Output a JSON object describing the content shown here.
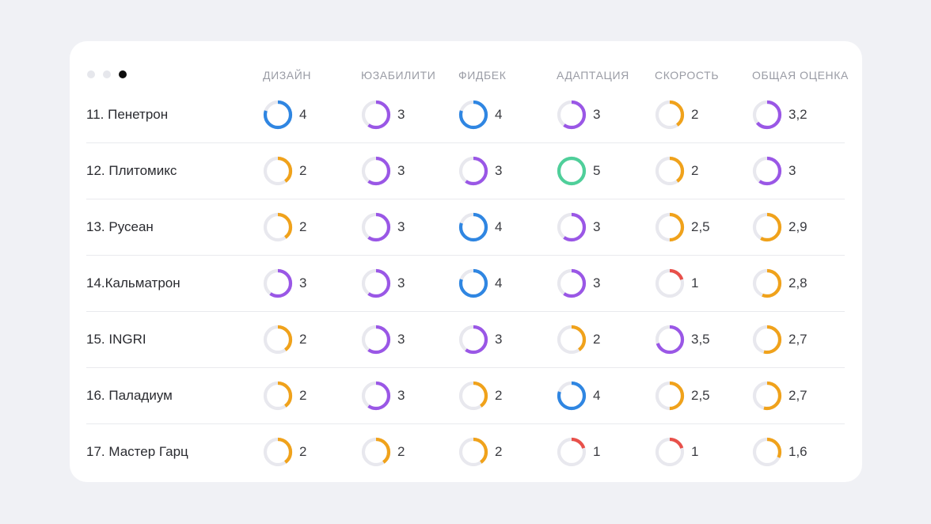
{
  "window": {
    "dots": [
      "inactive",
      "inactive",
      "active"
    ]
  },
  "columns": [
    "ДИЗАЙН",
    "ЮЗАБИЛИТИ",
    "ФИДБЕК",
    "АДАПТАЦИЯ",
    "СКОРОСТЬ",
    "ОБЩАЯ ОЦЕНКА"
  ],
  "colors": {
    "track": "#e8e8ee",
    "low": "#e8504a",
    "medium": "#f0a21b",
    "good": "#9a57e6",
    "high": "#2f86e2",
    "max": "#4fcf9a"
  },
  "rows": [
    {
      "name": "11. Пенетрон",
      "scores": [
        {
          "label": "4",
          "value": 4
        },
        {
          "label": "3",
          "value": 3
        },
        {
          "label": "4",
          "value": 4
        },
        {
          "label": "3",
          "value": 3
        },
        {
          "label": "2",
          "value": 2
        },
        {
          "label": "3,2",
          "value": 3.2
        }
      ]
    },
    {
      "name": "12. Плитомикс",
      "scores": [
        {
          "label": "2",
          "value": 2
        },
        {
          "label": "3",
          "value": 3
        },
        {
          "label": "3",
          "value": 3
        },
        {
          "label": "5",
          "value": 5
        },
        {
          "label": "2",
          "value": 2
        },
        {
          "label": "3",
          "value": 3
        }
      ]
    },
    {
      "name": "13. Русеан",
      "scores": [
        {
          "label": "2",
          "value": 2
        },
        {
          "label": "3",
          "value": 3
        },
        {
          "label": "4",
          "value": 4
        },
        {
          "label": "3",
          "value": 3
        },
        {
          "label": "2,5",
          "value": 2.5
        },
        {
          "label": "2,9",
          "value": 2.9
        }
      ]
    },
    {
      "name": "14.Кальматрон",
      "scores": [
        {
          "label": "3",
          "value": 3
        },
        {
          "label": "3",
          "value": 3
        },
        {
          "label": "4",
          "value": 4
        },
        {
          "label": "3",
          "value": 3
        },
        {
          "label": "1",
          "value": 1
        },
        {
          "label": "2,8",
          "value": 2.8
        }
      ]
    },
    {
      "name": "15. INGRI",
      "scores": [
        {
          "label": "2",
          "value": 2
        },
        {
          "label": "3",
          "value": 3
        },
        {
          "label": "3",
          "value": 3
        },
        {
          "label": "2",
          "value": 2
        },
        {
          "label": "3,5",
          "value": 3.5
        },
        {
          "label": "2,7",
          "value": 2.7
        }
      ]
    },
    {
      "name": "16. Паладиум",
      "scores": [
        {
          "label": "2",
          "value": 2
        },
        {
          "label": "3",
          "value": 3
        },
        {
          "label": "2",
          "value": 2
        },
        {
          "label": "4",
          "value": 4
        },
        {
          "label": "2,5",
          "value": 2.5
        },
        {
          "label": "2,7",
          "value": 2.7
        }
      ]
    },
    {
      "name": "17. Мастер Гарц",
      "scores": [
        {
          "label": "2",
          "value": 2
        },
        {
          "label": "2",
          "value": 2
        },
        {
          "label": "2",
          "value": 2
        },
        {
          "label": "1",
          "value": 1
        },
        {
          "label": "1",
          "value": 1
        },
        {
          "label": "1,6",
          "value": 1.6
        }
      ]
    }
  ]
}
